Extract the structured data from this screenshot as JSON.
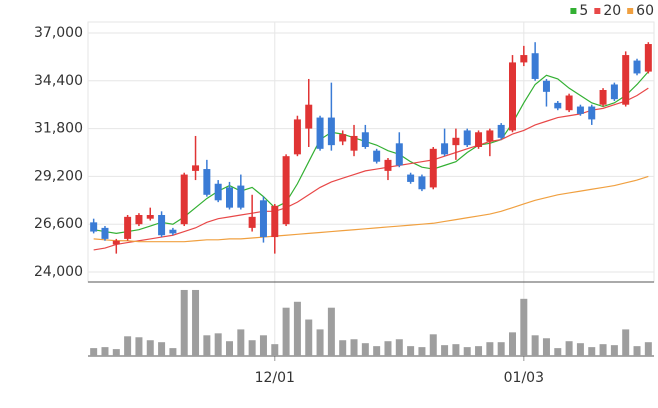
{
  "chart_data": {
    "type": "candlestick",
    "categories": [
      null,
      null,
      null,
      null,
      null,
      null,
      null,
      null,
      null,
      null,
      null,
      null,
      null,
      null,
      null,
      null,
      "12/01",
      null,
      null,
      null,
      null,
      null,
      null,
      null,
      null,
      null,
      null,
      null,
      null,
      null,
      null,
      null,
      null,
      null,
      null,
      null,
      null,
      null,
      "01/03",
      null,
      null,
      null,
      null,
      null,
      null,
      null,
      null,
      null,
      null,
      null
    ],
    "open": [
      26700,
      26400,
      25500,
      25800,
      26600,
      26900,
      27100,
      26300,
      26600,
      29500,
      29600,
      28800,
      28600,
      28700,
      26400,
      27900,
      25900,
      26600,
      30400,
      31800,
      32400,
      32400,
      31100,
      30600,
      31600,
      30600,
      29500,
      31000,
      29300,
      29200,
      28600,
      31000,
      30900,
      31700,
      30800,
      31100,
      32000,
      31700,
      35400,
      35900,
      34400,
      33200,
      32800,
      33000,
      33000,
      33100,
      34200,
      33100,
      35500,
      34900
    ],
    "high": [
      26900,
      26500,
      25800,
      27100,
      27200,
      27500,
      27300,
      26400,
      29400,
      31400,
      30100,
      29000,
      28900,
      29300,
      28200,
      28100,
      27700,
      30400,
      32500,
      34500,
      32500,
      34300,
      31700,
      32000,
      32000,
      30700,
      30200,
      31600,
      29400,
      29300,
      30800,
      31800,
      31800,
      31800,
      31700,
      31800,
      32100,
      35800,
      36300,
      36500,
      34500,
      33300,
      33700,
      33100,
      33100,
      34000,
      34300,
      36000,
      35600,
      36500
    ],
    "low": [
      26100,
      25700,
      25000,
      25700,
      26500,
      26800,
      25900,
      26000,
      26500,
      29000,
      28100,
      27800,
      27400,
      27400,
      26200,
      25600,
      25000,
      26500,
      30300,
      30800,
      30600,
      30600,
      30900,
      30300,
      30700,
      29900,
      29000,
      29700,
      28800,
      28400,
      28500,
      30300,
      30100,
      30800,
      30700,
      30300,
      31200,
      31600,
      35200,
      34400,
      33000,
      32800,
      32700,
      32500,
      32000,
      33000,
      33300,
      33000,
      34700,
      34800
    ],
    "close": [
      26200,
      25800,
      25700,
      27000,
      27100,
      27100,
      26000,
      26100,
      29300,
      29800,
      28200,
      27900,
      27500,
      27500,
      27000,
      25900,
      27600,
      30300,
      32300,
      33100,
      30700,
      30900,
      31500,
      31400,
      30800,
      30000,
      30100,
      29800,
      28900,
      28500,
      30700,
      30400,
      31300,
      30900,
      31600,
      31700,
      31300,
      35400,
      35800,
      34500,
      33800,
      32900,
      33600,
      32600,
      32300,
      33900,
      33400,
      35800,
      34800,
      36400
    ],
    "volume": [
      8,
      9,
      7,
      20,
      19,
      16,
      14,
      8,
      67,
      67,
      21,
      23,
      15,
      27,
      16,
      21,
      12,
      49,
      55,
      37,
      27,
      49,
      16,
      17,
      13,
      10,
      15,
      17,
      10,
      9,
      22,
      11,
      12,
      9,
      10,
      14,
      14,
      24,
      58,
      21,
      18,
      8,
      15,
      13,
      9,
      12,
      11,
      27,
      10,
      14
    ],
    "vlim": [
      0,
      70
    ],
    "up_color": "#e03434",
    "down_color": "#3a7bd5",
    "volume_color": "#9e9e9e",
    "series": [
      {
        "name": "5",
        "color": "#33b033",
        "values": [
          26300,
          26200,
          26100,
          26200,
          26300,
          26500,
          26700,
          26600,
          27000,
          27500,
          28000,
          28400,
          28700,
          28400,
          28600,
          28100,
          27500,
          27800,
          28800,
          30000,
          31200,
          31600,
          31500,
          31300,
          31100,
          30900,
          30600,
          30400,
          30000,
          29700,
          29600,
          29800,
          30000,
          30500,
          30900,
          31000,
          31200,
          32100,
          33200,
          34200,
          34700,
          34500,
          34000,
          33600,
          33200,
          33000,
          33200,
          33600,
          34200,
          34900
        ]
      },
      {
        "name": "20",
        "color": "#e84848",
        "values": [
          25200,
          25300,
          25500,
          25600,
          25700,
          25800,
          25900,
          26000,
          26200,
          26400,
          26700,
          26900,
          27000,
          27100,
          27200,
          27300,
          27300,
          27500,
          27800,
          28200,
          28600,
          28900,
          29100,
          29300,
          29500,
          29600,
          29700,
          29800,
          29900,
          30000,
          30100,
          30300,
          30500,
          30700,
          30900,
          31100,
          31200,
          31500,
          31700,
          32000,
          32200,
          32400,
          32500,
          32600,
          32800,
          32900,
          33100,
          33300,
          33600,
          34000
        ]
      },
      {
        "name": "60",
        "color": "#f0a040",
        "values": [
          25800,
          25750,
          25700,
          25700,
          25650,
          25650,
          25650,
          25650,
          25650,
          25700,
          25750,
          25750,
          25800,
          25800,
          25850,
          25900,
          25950,
          26000,
          26050,
          26100,
          26150,
          26200,
          26250,
          26300,
          26350,
          26400,
          26450,
          26500,
          26550,
          26600,
          26650,
          26750,
          26850,
          26950,
          27050,
          27150,
          27300,
          27500,
          27700,
          27900,
          28050,
          28200,
          28300,
          28400,
          28500,
          28600,
          28700,
          28850,
          29000,
          29200
        ]
      }
    ],
    "ylim": [
      24000,
      37000
    ],
    "yticks": [
      {
        "value": 24000,
        "label": "24,000"
      },
      {
        "value": 26600,
        "label": "26,600"
      },
      {
        "value": 29200,
        "label": "29,200"
      },
      {
        "value": 31800,
        "label": "31,800"
      },
      {
        "value": 34400,
        "label": "34,400"
      },
      {
        "value": 37000,
        "label": "37,000"
      }
    ],
    "grid": true,
    "legend": "top-right"
  }
}
